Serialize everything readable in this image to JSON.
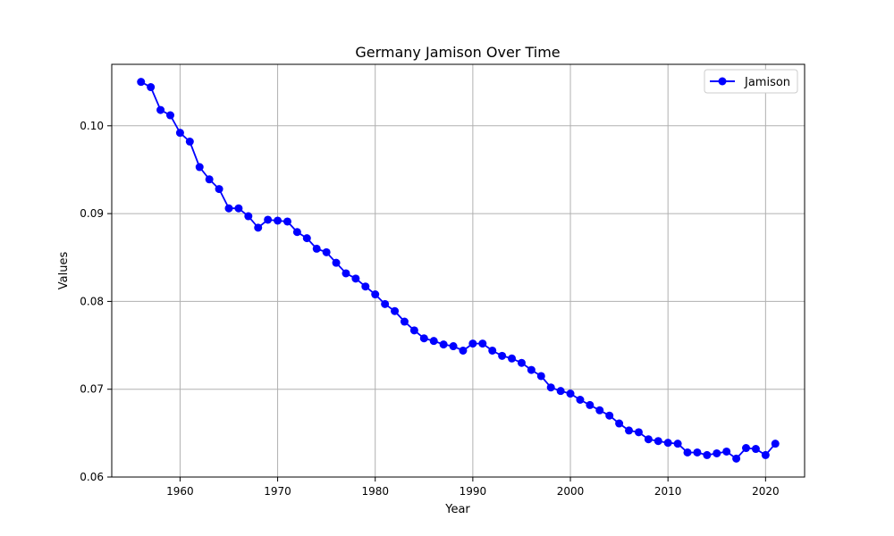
{
  "chart_data": {
    "type": "line",
    "title": "Germany Jamison Over Time",
    "xlabel": "Year",
    "ylabel": "Values",
    "xlim": [
      1953,
      2024
    ],
    "ylim": [
      0.06,
      0.107
    ],
    "x_ticks": [
      1960,
      1970,
      1980,
      1990,
      2000,
      2010,
      2020
    ],
    "y_ticks": [
      0.06,
      0.07,
      0.08,
      0.09,
      0.1
    ],
    "y_tick_labels": [
      "0.06",
      "0.07",
      "0.08",
      "0.09",
      "0.10"
    ],
    "grid": true,
    "legend_position": "top-right",
    "series": [
      {
        "name": "Jamison",
        "color": "#0000ff",
        "marker": "circle",
        "x": [
          1956,
          1957,
          1958,
          1959,
          1960,
          1961,
          1962,
          1963,
          1964,
          1965,
          1966,
          1967,
          1968,
          1969,
          1970,
          1971,
          1972,
          1973,
          1974,
          1975,
          1976,
          1977,
          1978,
          1979,
          1980,
          1981,
          1982,
          1983,
          1984,
          1985,
          1986,
          1987,
          1988,
          1989,
          1990,
          1991,
          1992,
          1993,
          1994,
          1995,
          1996,
          1997,
          1998,
          1999,
          2000,
          2001,
          2002,
          2003,
          2004,
          2005,
          2006,
          2007,
          2008,
          2009,
          2010,
          2011,
          2012,
          2013,
          2014,
          2015,
          2016,
          2017,
          2018,
          2019,
          2020,
          2021
        ],
        "y": [
          0.105,
          0.1044,
          0.1018,
          0.1012,
          0.0992,
          0.0982,
          0.0953,
          0.0939,
          0.0928,
          0.0906,
          0.0906,
          0.0897,
          0.0884,
          0.0893,
          0.0892,
          0.0891,
          0.0879,
          0.0872,
          0.086,
          0.0856,
          0.0844,
          0.0832,
          0.0826,
          0.0817,
          0.0808,
          0.0797,
          0.0789,
          0.0777,
          0.0767,
          0.0758,
          0.0755,
          0.0751,
          0.0749,
          0.0744,
          0.0752,
          0.0752,
          0.0744,
          0.0738,
          0.0735,
          0.073,
          0.0722,
          0.0715,
          0.0702,
          0.0698,
          0.0695,
          0.0688,
          0.0682,
          0.0676,
          0.067,
          0.0661,
          0.0653,
          0.0651,
          0.0643,
          0.0641,
          0.0639,
          0.0638,
          0.0628,
          0.0628,
          0.0625,
          0.0627,
          0.0629,
          0.0621,
          0.0633,
          0.0632,
          0.0625,
          0.0638
        ]
      }
    ]
  }
}
